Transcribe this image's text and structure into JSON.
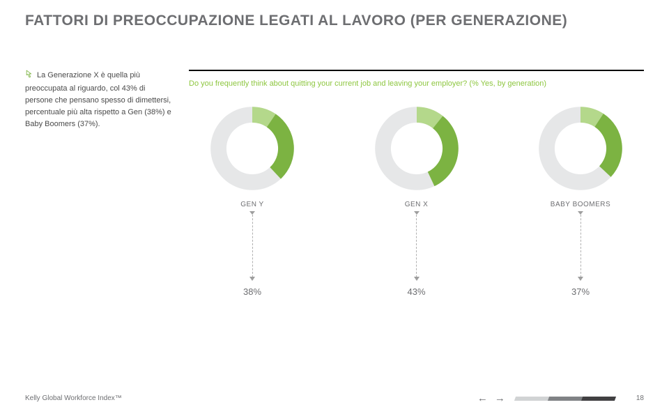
{
  "title": "FATTORI DI PREOCCUPAZIONE LEGATI AL LAVORO (PER GENERAZIONE)",
  "intro_text": "La Generazione X è quella più preoccupata al riguardo, col 43% di persone che pensano spesso di dimettersi, percentuale più alta rispetto a Gen (38%) e Baby Boomers (37%).",
  "question_text": "Do you frequently think about quitting your current job and leaving your employer? (% Yes, by generation)",
  "charts": {
    "type": "donut",
    "inner_ratio": 0.62,
    "track_color": "#e6e7e8",
    "segment_colors": {
      "light": "#b4d88b",
      "dark": "#7cb342"
    },
    "light_ratio": 0.25,
    "start_angle_deg": -90,
    "label_fontsize": 10,
    "pct_fontsize": 13,
    "label_color": "#6d6e71",
    "rule_color": "#000000",
    "question_color": "#8dc63f",
    "items": [
      {
        "label": "GEN Y",
        "value": 38,
        "pct_text": "38%"
      },
      {
        "label": "GEN X",
        "value": 43,
        "pct_text": "43%"
      },
      {
        "label": "BABY BOOMERS",
        "value": 37,
        "pct_text": "37%"
      }
    ]
  },
  "footer": {
    "brand": "Kelly Global Workforce Index™",
    "page_number": "18",
    "stripe_colors": [
      "#d1d3d4",
      "#808285",
      "#414042"
    ]
  },
  "nav": {
    "prev_glyph": "←",
    "next_glyph": "→"
  },
  "intro_icon_color": "#7cb342"
}
